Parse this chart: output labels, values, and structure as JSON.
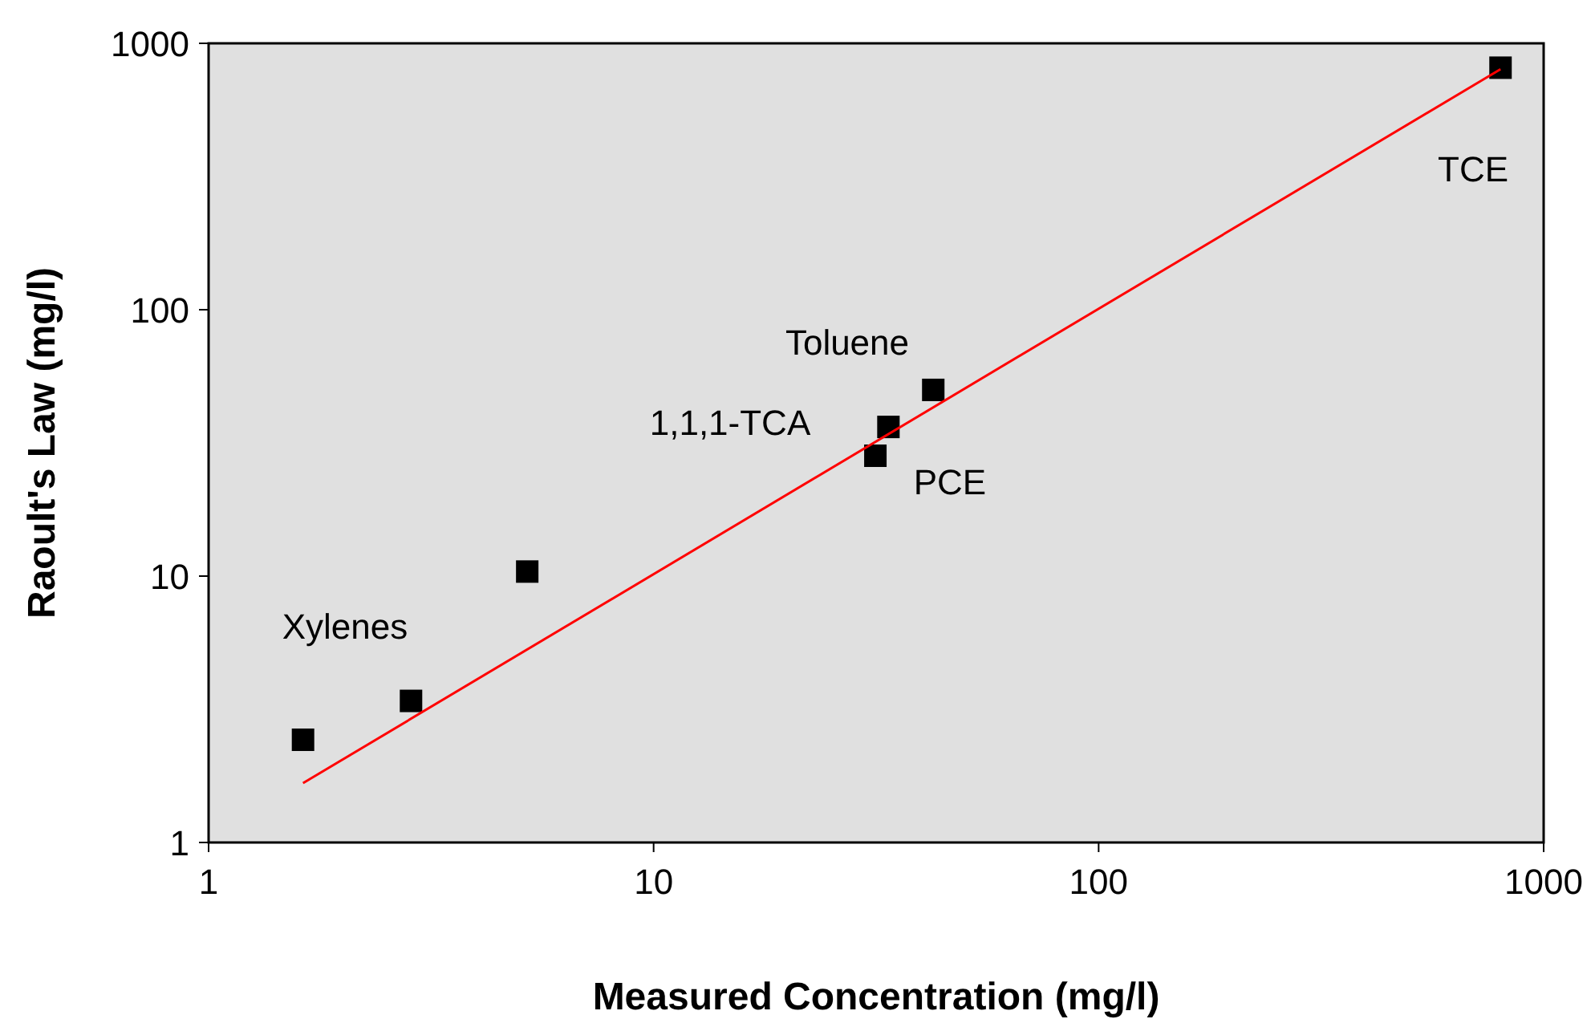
{
  "chart_data": {
    "type": "scatter",
    "xlabel": "Measured Concentration (mg/l)",
    "ylabel": "Raoult's Law (mg/l)",
    "log": "xy",
    "grid": false,
    "xlim": [
      1,
      1000
    ],
    "xticks": [
      1,
      10,
      100,
      1000
    ],
    "ylim": [
      1,
      1000
    ],
    "yticks": [
      1,
      10,
      100,
      1000
    ],
    "series": [
      {
        "color": "#000000",
        "marker": "square",
        "x": [
          1.63,
          2.85,
          5.2,
          31.5,
          33.7,
          42.5,
          800
        ],
        "values": [
          2.43,
          3.4,
          10.4,
          28.3,
          36.3,
          50,
          810
        ]
      },
      {
        "type": "line",
        "color": "#ff0000",
        "line_style": "solid",
        "x": [
          1.63,
          800
        ],
        "values": [
          1.67,
          800
        ]
      }
    ],
    "annotations": [
      "Xylenes",
      "Toluene",
      "1,1,1-TCA",
      "PCE",
      "TCE"
    ]
  }
}
